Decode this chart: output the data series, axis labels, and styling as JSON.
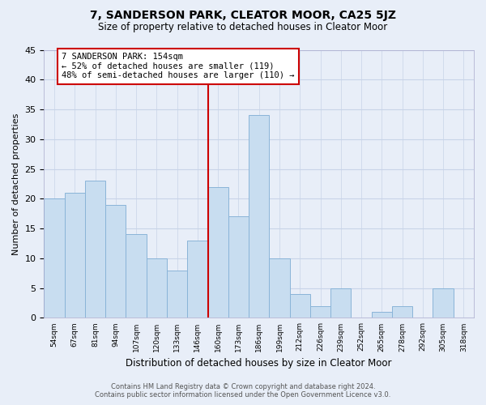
{
  "title": "7, SANDERSON PARK, CLEATOR MOOR, CA25 5JZ",
  "subtitle": "Size of property relative to detached houses in Cleator Moor",
  "xlabel": "Distribution of detached houses by size in Cleator Moor",
  "ylabel": "Number of detached properties",
  "bin_labels": [
    "54sqm",
    "67sqm",
    "81sqm",
    "94sqm",
    "107sqm",
    "120sqm",
    "133sqm",
    "146sqm",
    "160sqm",
    "173sqm",
    "186sqm",
    "199sqm",
    "212sqm",
    "226sqm",
    "239sqm",
    "252sqm",
    "265sqm",
    "278sqm",
    "292sqm",
    "305sqm",
    "318sqm"
  ],
  "bar_values": [
    20,
    21,
    23,
    19,
    14,
    10,
    8,
    13,
    22,
    17,
    34,
    10,
    4,
    2,
    5,
    0,
    1,
    2,
    0,
    5,
    0
  ],
  "bar_color": "#c8ddf0",
  "bar_edge_color": "#8ab4d8",
  "vline_x_idx": 8,
  "vline_color": "#cc0000",
  "annotation_line1": "7 SANDERSON PARK: 154sqm",
  "annotation_line2": "← 52% of detached houses are smaller (119)",
  "annotation_line3": "48% of semi-detached houses are larger (110) →",
  "annotation_box_color": "#ffffff",
  "annotation_box_edge": "#cc0000",
  "ylim": [
    0,
    45
  ],
  "yticks": [
    0,
    5,
    10,
    15,
    20,
    25,
    30,
    35,
    40,
    45
  ],
  "grid_color": "#c8d4e8",
  "bg_color": "#e8eef8",
  "plot_bg_color": "#e8eef8",
  "footer_line1": "Contains HM Land Registry data © Crown copyright and database right 2024.",
  "footer_line2": "Contains public sector information licensed under the Open Government Licence v3.0."
}
